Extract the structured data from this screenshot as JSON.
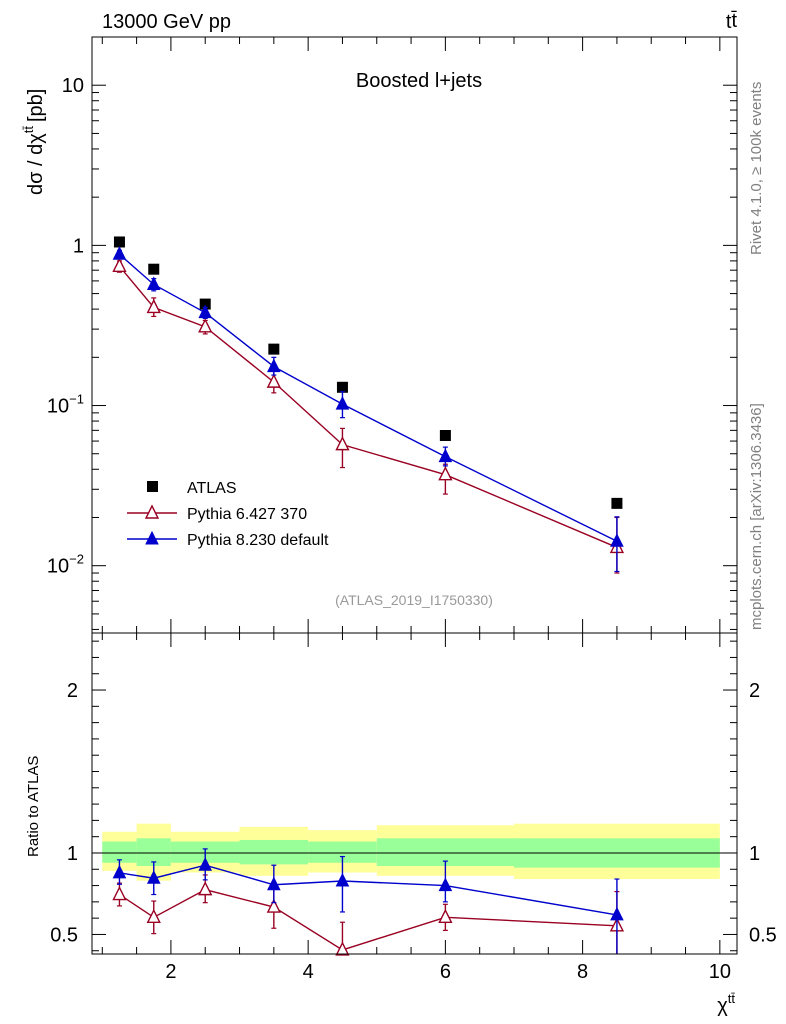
{
  "header": {
    "left": "13000 GeV pp",
    "right_base": "t",
    "right_sup": "t̄",
    "rivet": "Rivet 4.1.0, ≥ 100k events",
    "mcplots": "mcplots.cern.ch [arXiv:1306.3436]"
  },
  "colors": {
    "data": "#000000",
    "pythia6": "#990022",
    "pythia8": "#0000cc",
    "band_inner": "#99ff99",
    "band_outer": "#ffff99"
  },
  "chart_data": [
    {
      "type": "scatter",
      "title": "Boosted l+jets",
      "watermark": "(ATLAS_2019_I1750330)",
      "ylabel": "dσ / dχ",
      "ylabel_sup": "tt̄",
      "ylabel_unit": "[pb]",
      "yscale": "log",
      "xlim": [
        0.85,
        10.25
      ],
      "ylim": [
        0.0038,
        20
      ],
      "y_ticks": [
        {
          "value": 10,
          "label": "10"
        },
        {
          "value": 1,
          "label": "1"
        },
        {
          "value": 0.1,
          "label": "10",
          "exp": "−1"
        },
        {
          "value": 0.01,
          "label": "10",
          "exp": "−2"
        }
      ],
      "legend": {
        "position": "middle-left",
        "entries": [
          "ATLAS",
          "Pythia 6.427 370",
          "Pythia 8.230 default"
        ]
      },
      "series": [
        {
          "name": "ATLAS",
          "marker": "square",
          "x": [
            1.25,
            1.75,
            2.5,
            3.5,
            4.5,
            6.0,
            8.5
          ],
          "y": [
            1.05,
            0.71,
            0.43,
            0.225,
            0.13,
            0.065,
            0.0245
          ],
          "yerr_lo": [
            0,
            0,
            0,
            0,
            0,
            0,
            0
          ],
          "yerr_hi": [
            0,
            0,
            0,
            0,
            0,
            0,
            0
          ]
        },
        {
          "name": "Pythia 6.427 370",
          "marker": "open-triangle",
          "x": [
            1.25,
            1.75,
            2.5,
            3.5,
            4.5,
            6.0,
            8.5
          ],
          "y": [
            0.74,
            0.41,
            0.31,
            0.14,
            0.057,
            0.037,
            0.013
          ],
          "yerr_lo": [
            0.06,
            0.05,
            0.03,
            0.02,
            0.016,
            0.009,
            0.004
          ],
          "yerr_hi": [
            0.06,
            0.06,
            0.03,
            0.03,
            0.015,
            0.006,
            0.007
          ]
        },
        {
          "name": "Pythia 8.230 default",
          "marker": "filled-triangle",
          "x": [
            1.25,
            1.75,
            2.5,
            3.5,
            4.5,
            6.0,
            8.5
          ],
          "y": [
            0.88,
            0.57,
            0.38,
            0.175,
            0.102,
            0.048,
            0.0142
          ],
          "yerr_lo": [
            0.05,
            0.05,
            0.03,
            0.02,
            0.018,
            0.006,
            0.005
          ],
          "yerr_hi": [
            0.05,
            0.05,
            0.03,
            0.025,
            0.02,
            0.007,
            0.006
          ]
        }
      ]
    },
    {
      "type": "scatter",
      "ylabel": "Ratio to ATLAS",
      "xlabel": "χ",
      "xlabel_sup": "tt̄",
      "xlim": [
        0.85,
        10.25
      ],
      "ylim": [
        0.38,
        2.35
      ],
      "x_ticks": [
        2,
        4,
        6,
        8,
        10
      ],
      "y_ticks": [
        0.5,
        1,
        2
      ],
      "reference_line": 1,
      "bands": [
        {
          "x_lo": 1.0,
          "x_hi": 1.5,
          "inner": [
            0.94,
            1.07
          ],
          "outer": [
            0.89,
            1.13
          ]
        },
        {
          "x_lo": 1.5,
          "x_hi": 2.0,
          "inner": [
            0.92,
            1.09
          ],
          "outer": [
            0.83,
            1.18
          ]
        },
        {
          "x_lo": 2.0,
          "x_hi": 3.0,
          "inner": [
            0.94,
            1.07
          ],
          "outer": [
            0.88,
            1.13
          ]
        },
        {
          "x_lo": 3.0,
          "x_hi": 4.0,
          "inner": [
            0.93,
            1.08
          ],
          "outer": [
            0.86,
            1.16
          ]
        },
        {
          "x_lo": 4.0,
          "x_hi": 5.0,
          "inner": [
            0.94,
            1.07
          ],
          "outer": [
            0.88,
            1.14
          ]
        },
        {
          "x_lo": 5.0,
          "x_hi": 7.0,
          "inner": [
            0.92,
            1.09
          ],
          "outer": [
            0.86,
            1.17
          ]
        },
        {
          "x_lo": 7.0,
          "x_hi": 10.0,
          "inner": [
            0.91,
            1.09
          ],
          "outer": [
            0.84,
            1.18
          ]
        }
      ],
      "series": [
        {
          "name": "Pythia 6.427 370",
          "marker": "open-triangle",
          "x": [
            1.25,
            1.75,
            2.5,
            3.5,
            4.5,
            6.0,
            8.5
          ],
          "y": [
            0.745,
            0.605,
            0.775,
            0.668,
            0.405,
            0.605,
            0.553
          ],
          "yerr_lo": [
            0.07,
            0.1,
            0.08,
            0.13,
            0.05,
            0.08,
            0.2
          ],
          "yerr_hi": [
            0.07,
            0.1,
            0.09,
            0.12,
            0.17,
            0.08,
            0.21
          ]
        },
        {
          "name": "Pythia 8.230 default",
          "marker": "filled-triangle",
          "x": [
            1.25,
            1.75,
            2.5,
            3.5,
            4.5,
            6.0,
            8.5
          ],
          "y": [
            0.878,
            0.845,
            0.925,
            0.805,
            0.828,
            0.8,
            0.62
          ],
          "yerr_lo": [
            0.07,
            0.1,
            0.09,
            0.11,
            0.19,
            0.1,
            0.3
          ],
          "yerr_hi": [
            0.08,
            0.1,
            0.1,
            0.12,
            0.15,
            0.15,
            0.22
          ]
        }
      ]
    }
  ]
}
